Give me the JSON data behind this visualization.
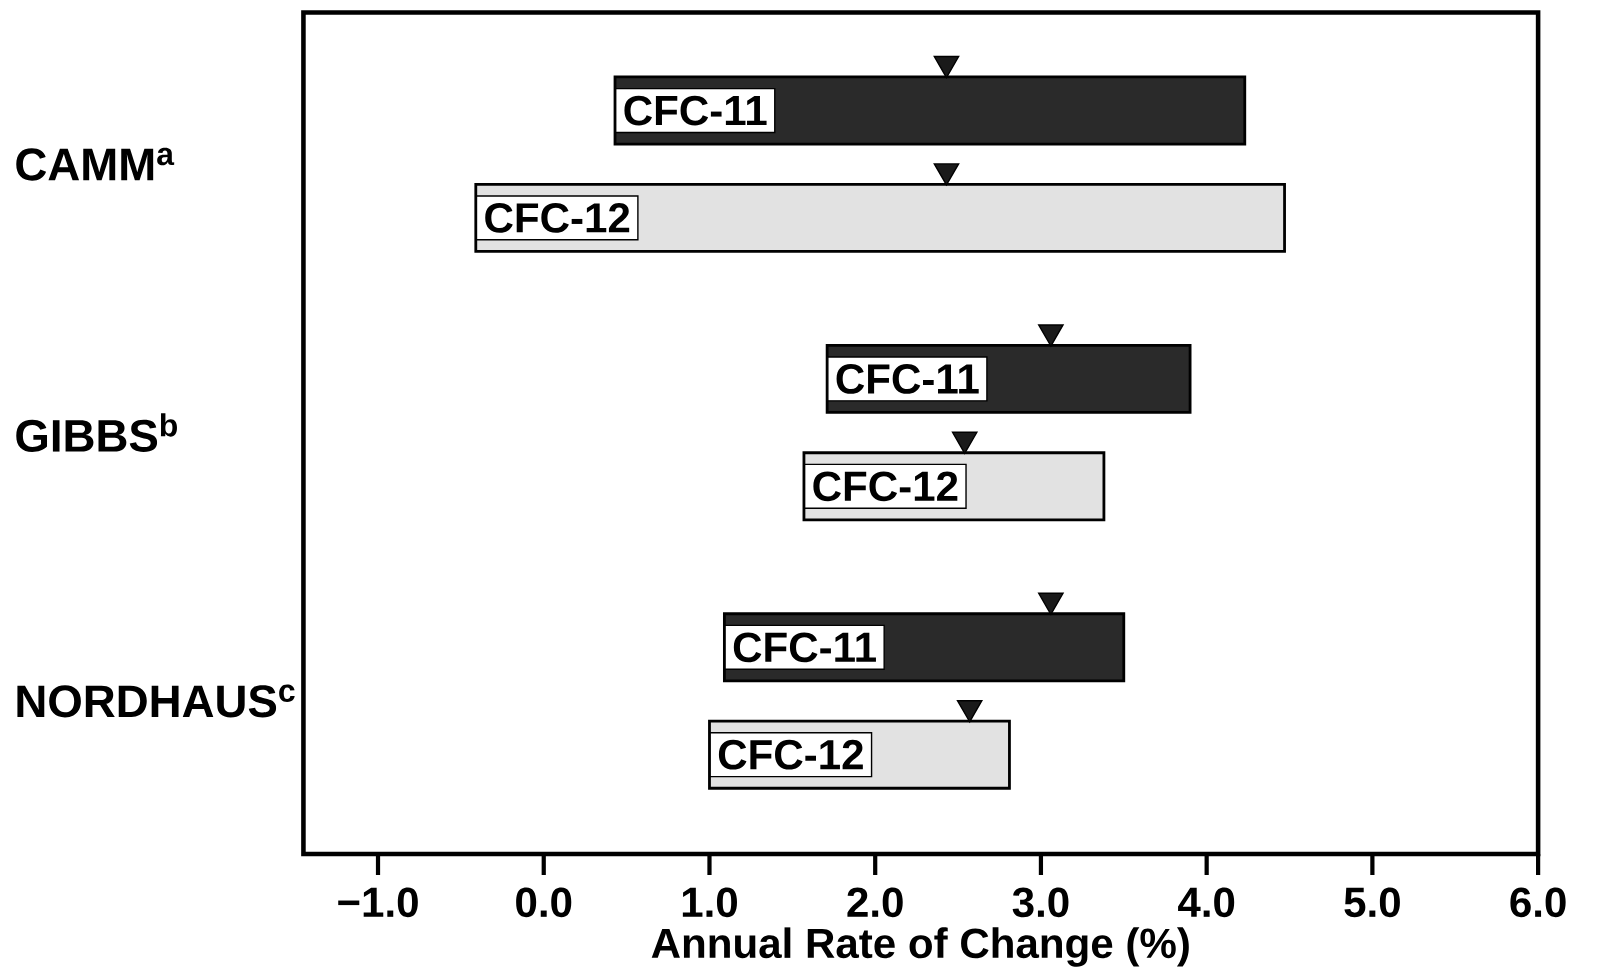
{
  "chart_data": {
    "type": "bar",
    "orientation": "horizontal",
    "categories": [
      "CAMM$^{a}$",
      "GIBBS$^{b}$",
      "NORDHAUS$^{c}$"
    ],
    "xlabel": "Annual Rate of Change (%)",
    "xlim": [
      -1.45,
      6.0
    ],
    "xticks": [
      {
        "value": -1,
        "label": "−1.0"
      },
      {
        "value": 0,
        "label": "0.0"
      },
      {
        "value": 1,
        "label": "1.0"
      },
      {
        "value": 2,
        "label": "2.0"
      },
      {
        "value": 3,
        "label": "3.0"
      },
      {
        "value": 4,
        "label": "4.0"
      },
      {
        "value": 5,
        "label": "5.0"
      },
      {
        "value": 6,
        "label": "6.0"
      }
    ],
    "series": [
      {
        "name": "CFC-11",
        "color": "#2a2a2a",
        "base": [
          0.43,
          1.71,
          1.09
        ],
        "values": [
          3.8,
          2.19,
          2.41
        ]
      },
      {
        "name": "CFC-12",
        "color": "#e2e2e2",
        "base": [
          -0.41,
          1.57,
          1.0
        ],
        "values": [
          4.88,
          1.81,
          1.81
        ]
      },
      {
        "type": "scatter",
        "marker": "triangle",
        "color": "#1a1a1a",
        "values": [
          2.43,
          3.06,
          3.06
        ]
      },
      {
        "type": "scatter",
        "marker": "triangle",
        "color": "#1a1a1a",
        "values": [
          2.43,
          2.54,
          2.57
        ]
      }
    ]
  }
}
